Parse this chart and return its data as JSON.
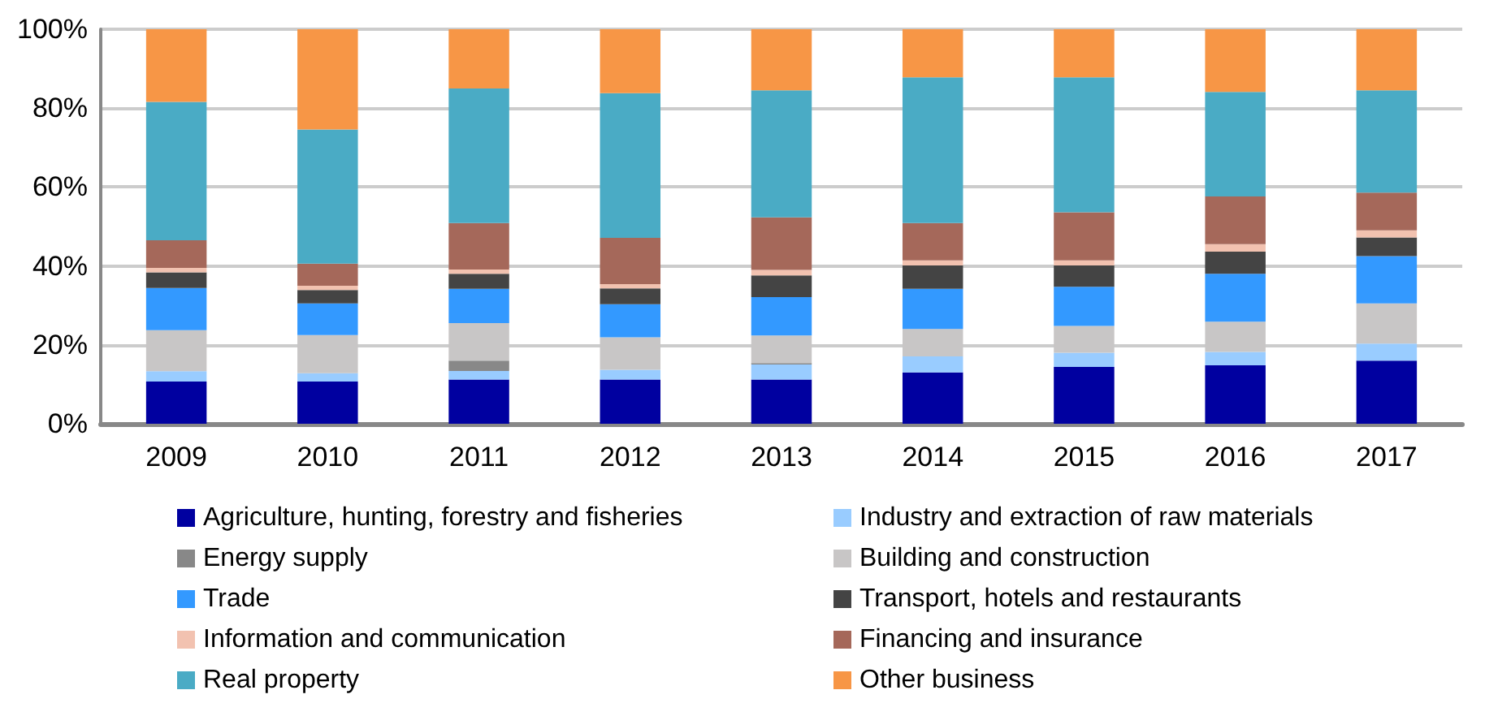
{
  "chart_data": {
    "type": "bar",
    "stacked": true,
    "categories": [
      "2009",
      "2010",
      "2011",
      "2012",
      "2013",
      "2014",
      "2015",
      "2016",
      "2017"
    ],
    "series": [
      {
        "name": "Agriculture, hunting, forestry and fisheries",
        "color": "#0000a0",
        "values": [
          10.7,
          10.7,
          11.2,
          11.2,
          11.2,
          13.0,
          14.4,
          14.8,
          16.0
        ]
      },
      {
        "name": "Industry and extraction of raw materials",
        "color": "#99ccff",
        "values": [
          2.6,
          2.1,
          2.2,
          2.5,
          3.8,
          4.1,
          3.6,
          3.4,
          4.3
        ]
      },
      {
        "name": "Energy supply",
        "color": "#888888",
        "values": [
          0,
          0,
          2.6,
          0,
          0.4,
          0,
          0,
          0,
          0
        ]
      },
      {
        "name": "Building and construction",
        "color": "#c8c6c6",
        "values": [
          10.4,
          9.7,
          9.5,
          8.2,
          7.0,
          6.9,
          6.8,
          7.7,
          10.2
        ]
      },
      {
        "name": "Trade",
        "color": "#3399ff",
        "values": [
          10.7,
          8.0,
          8.7,
          8.4,
          9.7,
          10.2,
          9.9,
          12.1,
          12.0
        ]
      },
      {
        "name": "Transport, hotels and restaurants",
        "color": "#444444",
        "values": [
          4.0,
          3.4,
          3.8,
          4.0,
          5.5,
          5.9,
          5.4,
          5.6,
          4.7
        ]
      },
      {
        "name": "Information and communication",
        "color": "#f2c2b0",
        "values": [
          1.1,
          1.1,
          1.1,
          1.1,
          1.4,
          1.3,
          1.3,
          1.9,
          1.8
        ]
      },
      {
        "name": "Financing and insurance",
        "color": "#a5685a",
        "values": [
          7.0,
          5.6,
          11.8,
          11.7,
          13.3,
          9.5,
          12.2,
          12.1,
          9.6
        ]
      },
      {
        "name": "Real property",
        "color": "#4aabc5",
        "values": [
          35.1,
          34.0,
          34.1,
          36.7,
          32.2,
          36.9,
          34.2,
          26.5,
          25.9
        ]
      },
      {
        "name": "Other business",
        "color": "#f79646",
        "values": [
          18.4,
          25.4,
          15.0,
          16.2,
          15.5,
          12.2,
          12.2,
          15.9,
          15.5
        ]
      }
    ],
    "ylim": [
      0,
      100
    ],
    "yticks": [
      {
        "value": 0,
        "label": "0%"
      },
      {
        "value": 20,
        "label": "20%"
      },
      {
        "value": 40,
        "label": "40%"
      },
      {
        "value": 60,
        "label": "60%"
      },
      {
        "value": 80,
        "label": "80%"
      },
      {
        "value": 100,
        "label": "100%"
      }
    ],
    "grid": "y",
    "legend": "bottom"
  }
}
